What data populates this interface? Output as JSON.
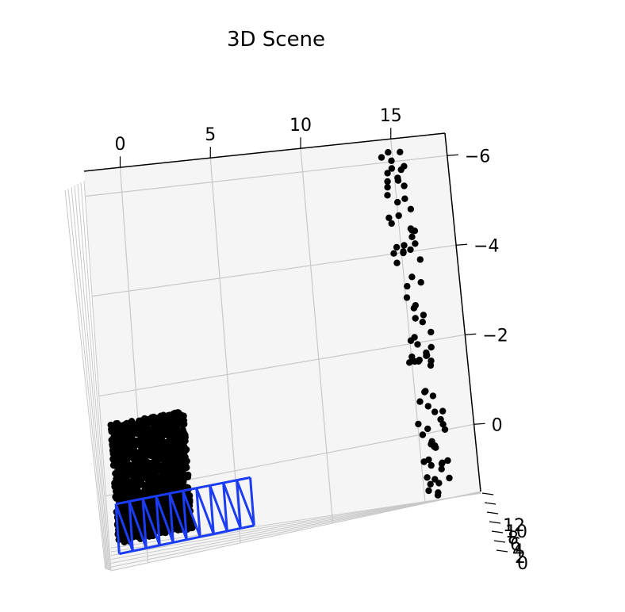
{
  "chart_data": {
    "type": "scatter",
    "projection": "3d",
    "title": "3D Scene",
    "xlabel": "",
    "ylabel": "",
    "zlabel": "",
    "x_ticks": [
      "0",
      "5",
      "10",
      "15"
    ],
    "z_ticks": [
      "−6",
      "−4",
      "−2",
      "0"
    ],
    "y_ticks": [
      "12",
      "10",
      "8",
      "6",
      "4",
      "2",
      "0"
    ],
    "grid": true,
    "pane_color": "#f5f5f5",
    "grid_color": "#c8c8c8",
    "point_color": "#000000",
    "wireframe_color": "#1a3cf5",
    "clusters": [
      {
        "name": "",
        "x": [
          -1.5,
          2.5
        ],
        "z": [
          -1.4,
          1.0
        ],
        "approx_points": 1600
      },
      {
        "name": "",
        "x": [
          14.0,
          16.5
        ],
        "z": [
          -6.3,
          1.5
        ],
        "approx_points": 90
      }
    ],
    "wireframe": {
      "x": [
        -1.5,
        5.8
      ],
      "z": [
        0.2,
        1.2
      ],
      "segments": 10
    }
  }
}
